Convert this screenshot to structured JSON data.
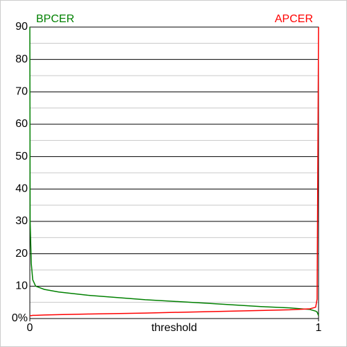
{
  "chart_data": {
    "type": "line",
    "x_label": "threshold",
    "x": [
      0,
      0.001,
      0.005,
      0.01,
      0.02,
      0.05,
      0.1,
      0.2,
      0.4,
      0.6,
      0.8,
      0.9,
      0.97,
      0.99,
      0.995,
      1
    ],
    "series": [
      {
        "name": "BPCER",
        "color": "#008000",
        "values": [
          90,
          30,
          17,
          12,
          10,
          9,
          8.2,
          7.2,
          5.8,
          4.8,
          3.7,
          3.3,
          2.8,
          2.3,
          2.0,
          0.9
        ]
      },
      {
        "name": "APCER",
        "color": "#ff0000",
        "values": [
          0.9,
          0.9,
          0.9,
          1.0,
          1.0,
          1.1,
          1.2,
          1.4,
          1.7,
          2.1,
          2.5,
          2.7,
          3.0,
          3.5,
          6,
          90
        ]
      }
    ],
    "xlim": [
      0,
      1
    ],
    "xticks": [
      0,
      1
    ],
    "ylim": [
      0,
      90
    ],
    "yticks": [
      {
        "value": 0,
        "label": "0%"
      },
      10,
      20,
      30,
      40,
      50,
      60,
      70,
      80,
      90
    ],
    "minor_yticks": [
      5,
      15,
      25,
      35,
      45,
      55,
      65,
      75,
      85
    ],
    "grid": true
  }
}
